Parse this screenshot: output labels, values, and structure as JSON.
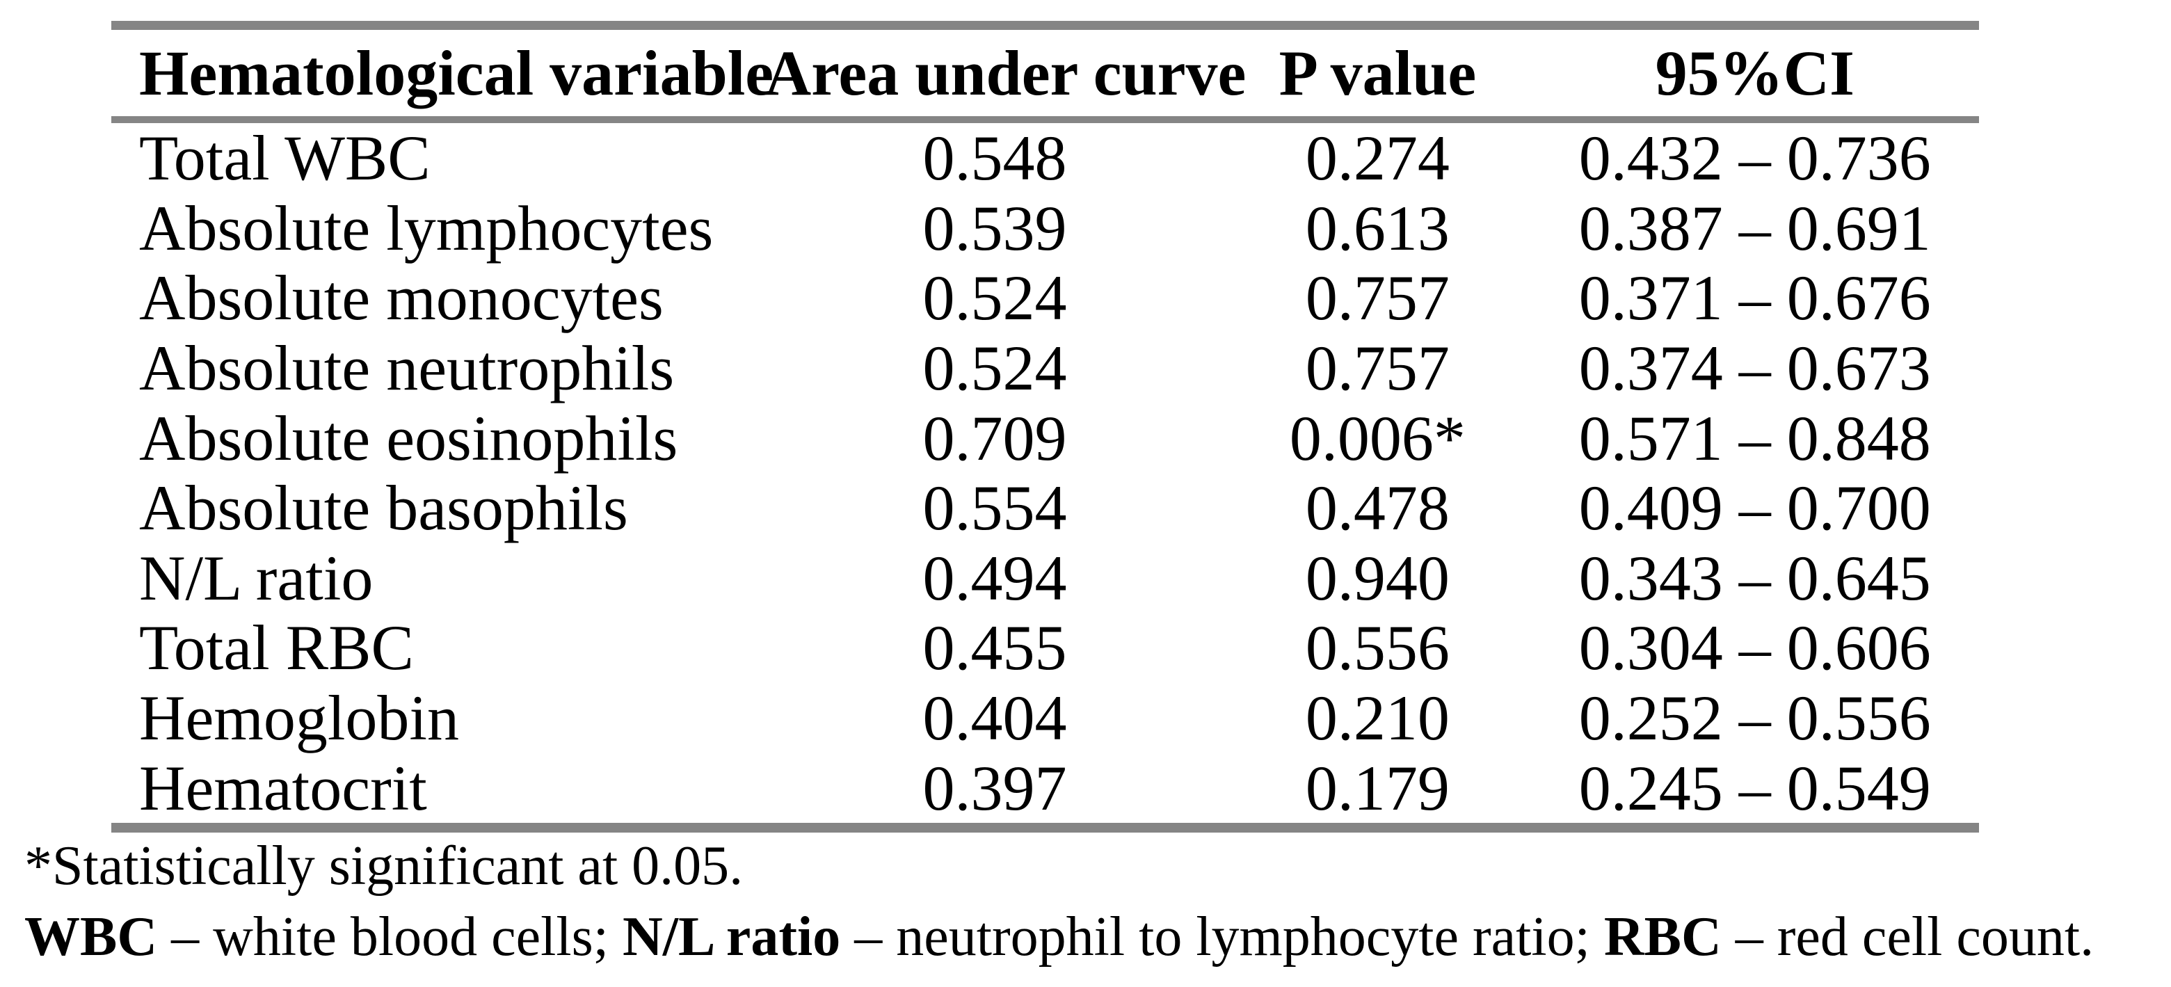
{
  "table": {
    "columns": [
      "Hematological variable",
      "Area under curve",
      "P value",
      "95%CI"
    ],
    "rows": [
      {
        "variable": "Total WBC",
        "auc": "0.548",
        "p": "0.274",
        "ci": "0.432 – 0.736"
      },
      {
        "variable": "Absolute lymphocytes",
        "auc": "0.539",
        "p": "0.613",
        "ci": "0.387 – 0.691"
      },
      {
        "variable": "Absolute monocytes",
        "auc": "0.524",
        "p": "0.757",
        "ci": "0.371 – 0.676"
      },
      {
        "variable": "Absolute neutrophils",
        "auc": "0.524",
        "p": "0.757",
        "ci": "0.374 – 0.673"
      },
      {
        "variable": "Absolute eosinophils",
        "auc": "0.709",
        "p": "0.006*",
        "ci": "0.571 – 0.848"
      },
      {
        "variable": "Absolute basophils",
        "auc": "0.554",
        "p": "0.478",
        "ci": "0.409 – 0.700"
      },
      {
        "variable": "N/L ratio",
        "auc": "0.494",
        "p": "0.940",
        "ci": "0.343 – 0.645"
      },
      {
        "variable": "Total RBC",
        "auc": "0.455",
        "p": "0.556",
        "ci": "0.304 – 0.606"
      },
      {
        "variable": "Hemoglobin",
        "auc": "0.404",
        "p": "0.210",
        "ci": "0.252 – 0.556"
      },
      {
        "variable": "Hematocrit",
        "auc": "0.397",
        "p": "0.179",
        "ci": "0.245 – 0.549"
      }
    ]
  },
  "footnotes": {
    "line1": "*Statistically significant at 0.05.",
    "line2_segments": [
      {
        "text": "WBC",
        "bold": true
      },
      {
        "text": " – white blood cells; ",
        "bold": false
      },
      {
        "text": "N/L ratio",
        "bold": true
      },
      {
        "text": " – neutrophil to lymphocyte ratio; ",
        "bold": false
      },
      {
        "text": "RBC",
        "bold": true
      },
      {
        "text": " – red cell count.",
        "bold": false
      }
    ]
  },
  "colors": {
    "rule_gray": "#858585",
    "text": "#000000",
    "background": "#ffffff"
  }
}
